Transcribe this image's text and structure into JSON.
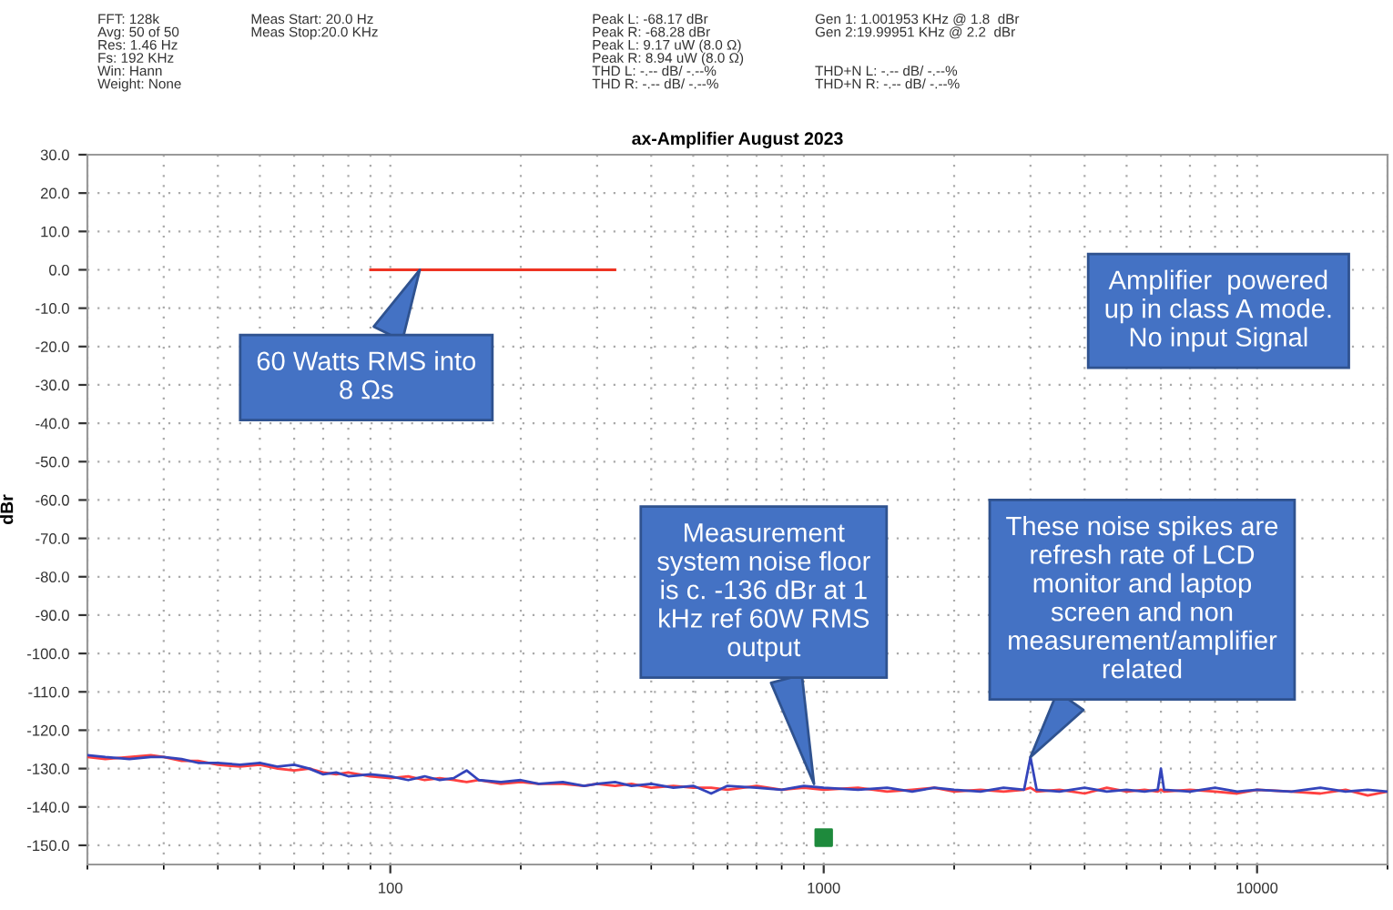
{
  "chart_data": {
    "type": "line",
    "title": "ax-Amplifier August 2023",
    "ylabel": "dBr",
    "xlim": [
      20,
      20000
    ],
    "xticks": [
      100,
      1000,
      10000
    ],
    "log": "x",
    "ylim": [
      -155,
      30
    ],
    "yticks": [
      {
        "value": 30,
        "label": "30.0"
      },
      {
        "value": 20,
        "label": "20.0"
      },
      {
        "value": 10,
        "label": "10.0"
      },
      {
        "value": 0,
        "label": "0.0"
      },
      {
        "value": -10,
        "label": "-10.0"
      },
      {
        "value": -20,
        "label": "-20.0"
      },
      {
        "value": -30,
        "label": "-30.0"
      },
      {
        "value": -40,
        "label": "-40.0"
      },
      {
        "value": -50,
        "label": "-50.0"
      },
      {
        "value": -60,
        "label": "-60.0"
      },
      {
        "value": -70,
        "label": "-70.0"
      },
      {
        "value": -80,
        "label": "-80.0"
      },
      {
        "value": -90,
        "label": "-90.0"
      },
      {
        "value": -100,
        "label": "-100.0"
      },
      {
        "value": -110,
        "label": "-110.0"
      },
      {
        "value": -120,
        "label": "-120.0"
      },
      {
        "value": -130,
        "label": "-130.0"
      },
      {
        "value": -140,
        "label": "-140.0"
      },
      {
        "value": -150,
        "label": "-150.0"
      }
    ],
    "grid": true,
    "x": [
      20,
      22,
      25,
      28,
      30,
      33,
      36,
      40,
      45,
      50,
      55,
      60,
      65,
      70,
      75,
      80,
      90,
      100,
      110,
      120,
      130,
      140,
      150,
      160,
      180,
      200,
      220,
      250,
      280,
      300,
      330,
      360,
      400,
      450,
      500,
      550,
      600,
      700,
      800,
      900,
      1000,
      1200,
      1400,
      1600,
      1800,
      2000,
      2300,
      2600,
      2900,
      3000,
      3100,
      3500,
      4000,
      4500,
      5000,
      5500,
      5900,
      6000,
      6100,
      7000,
      8000,
      9000,
      10000,
      12000,
      14000,
      16000,
      18000,
      20000
    ],
    "series": [
      {
        "color": "#ff4040",
        "values": [
          -127,
          -127.5,
          -127,
          -126.5,
          -127,
          -128,
          -128,
          -129,
          -129.5,
          -129,
          -130,
          -130.5,
          -130,
          -131,
          -131.5,
          -131,
          -132,
          -132.5,
          -132,
          -133,
          -132.5,
          -133,
          -133.5,
          -133,
          -134,
          -133.5,
          -134,
          -134,
          -134.5,
          -134,
          -134.5,
          -134,
          -135,
          -134.5,
          -135,
          -135,
          -135.5,
          -134.5,
          -135.5,
          -135,
          -135.5,
          -135,
          -136,
          -135.5,
          -135,
          -136,
          -135.5,
          -136,
          -135.5,
          -135,
          -136,
          -135.5,
          -136.5,
          -135,
          -136,
          -135.5,
          -136,
          -135.5,
          -136,
          -135.5,
          -136,
          -136.5,
          -135.5,
          -136,
          -136.5,
          -135.5,
          -137,
          -136
        ]
      },
      {
        "color": "#3344bb",
        "values": [
          -126.5,
          -127,
          -127.5,
          -127,
          -127,
          -127.5,
          -128.5,
          -128.5,
          -129,
          -128.5,
          -129.5,
          -129,
          -130,
          -131.5,
          -131,
          -132,
          -131.5,
          -132,
          -133,
          -132,
          -133,
          -132.5,
          -130.5,
          -133,
          -133.5,
          -133,
          -134,
          -133.5,
          -134.5,
          -134,
          -133.5,
          -134.5,
          -134,
          -135,
          -134.5,
          -136.5,
          -134.5,
          -135,
          -135.5,
          -134.5,
          -135,
          -135.5,
          -135,
          -136,
          -135,
          -135.5,
          -136,
          -135,
          -135.5,
          -127,
          -135.5,
          -136,
          -135,
          -136,
          -135.5,
          -136,
          -135.5,
          -130,
          -135.5,
          -136,
          -135,
          -136,
          -135.5,
          -136,
          -135,
          -136,
          -135.5,
          -136
        ]
      },
      {
        "color": "#ee3322",
        "x": [
          90,
          330
        ],
        "values": [
          0,
          0
        ]
      },
      {
        "type": "scatter",
        "color": "#1e8a3c",
        "marker": "square",
        "x": [
          1000
        ],
        "values": [
          -148
        ]
      }
    ],
    "annotations": [
      "FFT: 128k\nAvg: 50 of 50\nRes: 1.46 Hz\nFs: 192 KHz\nWin: Hann\nWeight: None",
      "Meas Start: 20.0 Hz\nMeas Stop:20.0 KHz",
      "Peak L: -68.17 dBr\nPeak R: -68.28 dBr\nPeak L: 9.17 uW (8.0 Ω)\nPeak R: 8.94 uW (8.0 Ω)\nTHD L: -.-- dB/ -.--%\nTHD R: -.-- dB/ -.--%",
      "Gen 1: 1.001953 KHz @ 1.8  dBr\nGen 2:19.99951 KHz @ 2.2  dBr\n\n\nTHD+N L: -.-- dB/ -.--%\nTHD+N R: -.-- dB/ -.--%",
      "Amplifier  powered\nup in class A mode.\nNo input Signal",
      "60 Watts RMS into\n8 Ωs",
      {
        "text": "Measurement\nsystem noise floor\nis c. -136 dBr at 1\nkHz ref 60W RMS\noutput",
        "x": 950,
        "y": -134
      },
      {
        "text": "These noise spikes are\nrefresh rate of LCD\nmonitor and laptop\nscreen and non\nmeasurement/amplifier\nrelated",
        "x": 3000,
        "y": -127
      }
    ]
  }
}
